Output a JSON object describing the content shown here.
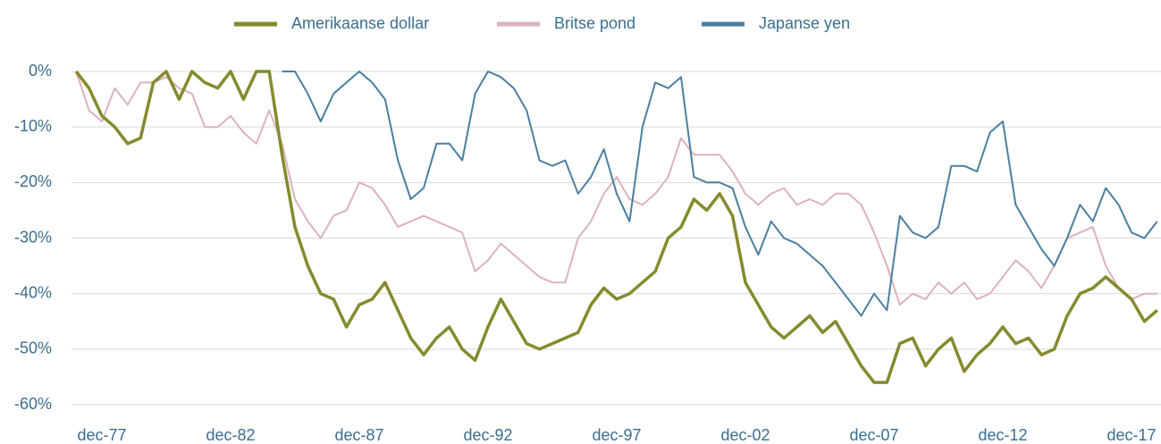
{
  "chart_data": {
    "type": "line",
    "categories": [
      null,
      null,
      "dec-77",
      null,
      null,
      null,
      null,
      null,
      null,
      null,
      null,
      null,
      "dec-82",
      null,
      null,
      null,
      null,
      null,
      null,
      null,
      null,
      null,
      "dec-87",
      null,
      null,
      null,
      null,
      null,
      null,
      null,
      null,
      null,
      "dec-92",
      null,
      null,
      null,
      null,
      null,
      null,
      null,
      null,
      null,
      "dec-97",
      null,
      null,
      null,
      null,
      null,
      null,
      null,
      null,
      null,
      "dec-02",
      null,
      null,
      null,
      null,
      null,
      null,
      null,
      null,
      null,
      "dec-07",
      null,
      null,
      null,
      null,
      null,
      null,
      null,
      null,
      null,
      "dec-12",
      null,
      null,
      null,
      null,
      null,
      null,
      null,
      null,
      null,
      "dec-17",
      null,
      null
    ],
    "series": [
      {
        "name": "Amerikaanse dollar",
        "color": "#858a2d",
        "values": [
          0,
          -3,
          -8,
          -10,
          -13,
          -12,
          -2,
          0,
          -5,
          0,
          -2,
          -3,
          0,
          -5,
          0,
          0,
          -15,
          -28,
          -35,
          -40,
          -41,
          -46,
          -42,
          -41,
          -38,
          -43,
          -48,
          -51,
          -48,
          -46,
          -50,
          -52,
          -46,
          -41,
          -45,
          -49,
          -50,
          -49,
          -48,
          -47,
          -42,
          -39,
          -41,
          -40,
          -38,
          -36,
          -30,
          -28,
          -23,
          -25,
          -22,
          -26,
          -38,
          -42,
          -46,
          -48,
          -46,
          -44,
          -47,
          -45,
          -49,
          -53,
          -56,
          -56,
          -49,
          -48,
          -53,
          -50,
          -48,
          -54,
          -51,
          -49,
          -46,
          -49,
          -48,
          -51,
          -50,
          -44,
          -40,
          -39,
          -37,
          -39,
          -41,
          -45,
          -43
        ]
      },
      {
        "name": "Britse pond",
        "color": "#dbb3b9",
        "values": [
          0,
          -7,
          -9,
          -3,
          -6,
          -2,
          -2,
          -1,
          -3,
          -4,
          -10,
          -10,
          -8,
          -11,
          -13,
          -7,
          -13,
          -23,
          -27,
          -30,
          -26,
          -25,
          -20,
          -21,
          -24,
          -28,
          -27,
          -26,
          -27,
          -28,
          -29,
          -36,
          -34,
          -31,
          -33,
          -35,
          -37,
          -38,
          -38,
          -30,
          -27,
          -22,
          -19,
          -23,
          -24,
          -22,
          -19,
          -12,
          -15,
          -15,
          -15,
          -18,
          -22,
          -24,
          -22,
          -21,
          -24,
          -23,
          -24,
          -22,
          -22,
          -24,
          -29,
          -35,
          -42,
          -40,
          -41,
          -38,
          -40,
          -38,
          -41,
          -40,
          -37,
          -34,
          -36,
          -39,
          -35,
          -30,
          -29,
          -28,
          -35,
          -39,
          -41,
          -40,
          -40
        ]
      },
      {
        "name": "Japanse yen",
        "color": "#4a7fa0",
        "values": [
          null,
          null,
          null,
          null,
          null,
          null,
          null,
          null,
          null,
          null,
          null,
          null,
          null,
          null,
          null,
          null,
          0,
          0,
          -4,
          -9,
          -4,
          -2,
          0,
          -2,
          -5,
          -16,
          -23,
          -21,
          -13,
          -13,
          -16,
          -4,
          0,
          -1,
          -3,
          -7,
          -16,
          -17,
          -16,
          -22,
          -19,
          -14,
          -22,
          -27,
          -10,
          -2,
          -3,
          -1,
          -19,
          -20,
          -20,
          -21,
          -28,
          -33,
          -27,
          -30,
          -31,
          -33,
          -35,
          -38,
          -41,
          -44,
          -40,
          -43,
          -26,
          -29,
          -30,
          -28,
          -17,
          -17,
          -18,
          -11,
          -9,
          -24,
          -28,
          -32,
          -35,
          -30,
          -24,
          -27,
          -21,
          -24,
          -29,
          -30,
          -27
        ]
      }
    ],
    "ylim": [
      -60,
      0
    ],
    "yticks": [
      {
        "value": 0,
        "label": "0%"
      },
      {
        "value": -10,
        "label": "-10%"
      },
      {
        "value": -20,
        "label": "-20%"
      },
      {
        "value": -30,
        "label": "-30%"
      },
      {
        "value": -40,
        "label": "-40%"
      },
      {
        "value": -50,
        "label": "-50%"
      },
      {
        "value": -60,
        "label": "-60%"
      }
    ],
    "grid": true,
    "legend": "top"
  }
}
